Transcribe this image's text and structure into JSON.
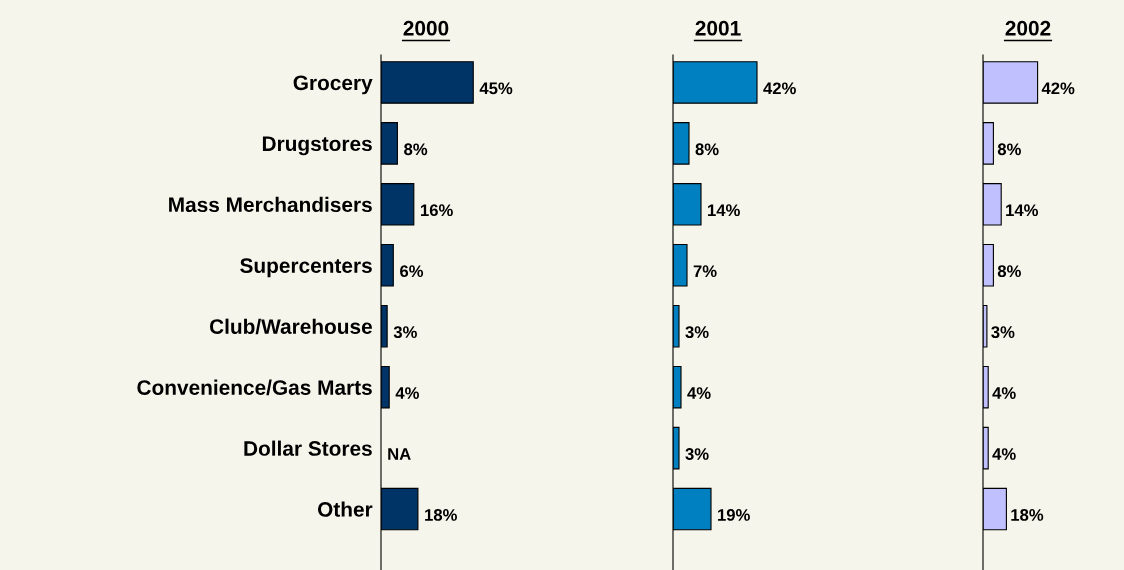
{
  "chart_data": [
    {
      "type": "bar",
      "orientation": "horizontal",
      "title": "2000",
      "categories": [
        "Grocery",
        "Drugstores",
        "Mass Merchandisers",
        "Supercenters",
        "Club/Warehouse",
        "Convenience/Gas Marts",
        "Dollar Stores",
        "Other"
      ],
      "values": [
        45,
        8,
        16,
        6,
        3,
        4,
        null,
        18
      ],
      "value_labels": [
        "45%",
        "8%",
        "16%",
        "6%",
        "3%",
        "4%",
        "NA",
        "18%"
      ],
      "color": "#003366",
      "tick_labels": "y",
      "grid": false,
      "legend": false
    },
    {
      "type": "bar",
      "orientation": "horizontal",
      "title": "2001",
      "categories": [
        null,
        null,
        null,
        null,
        null,
        null,
        null,
        null
      ],
      "values": [
        42,
        8,
        14,
        7,
        3,
        4,
        3,
        19
      ],
      "value_labels": [
        "42%",
        "8%",
        "14%",
        "7%",
        "3%",
        "4%",
        "3%",
        "19%"
      ],
      "color": "#0080c0",
      "tick_labels": false,
      "grid": false,
      "legend": false
    },
    {
      "type": "bar",
      "orientation": "horizontal",
      "title": "2002",
      "categories": [
        null,
        null,
        null,
        null,
        null,
        null,
        null,
        null
      ],
      "values": [
        42,
        8,
        14,
        8,
        3,
        4,
        4,
        18
      ],
      "value_labels": [
        "42%",
        "8%",
        "14%",
        "8%",
        "3%",
        "4%",
        "4%",
        "18%"
      ],
      "color": "#c0c0ff",
      "tick_labels": false,
      "grid": false,
      "legend": false
    }
  ]
}
